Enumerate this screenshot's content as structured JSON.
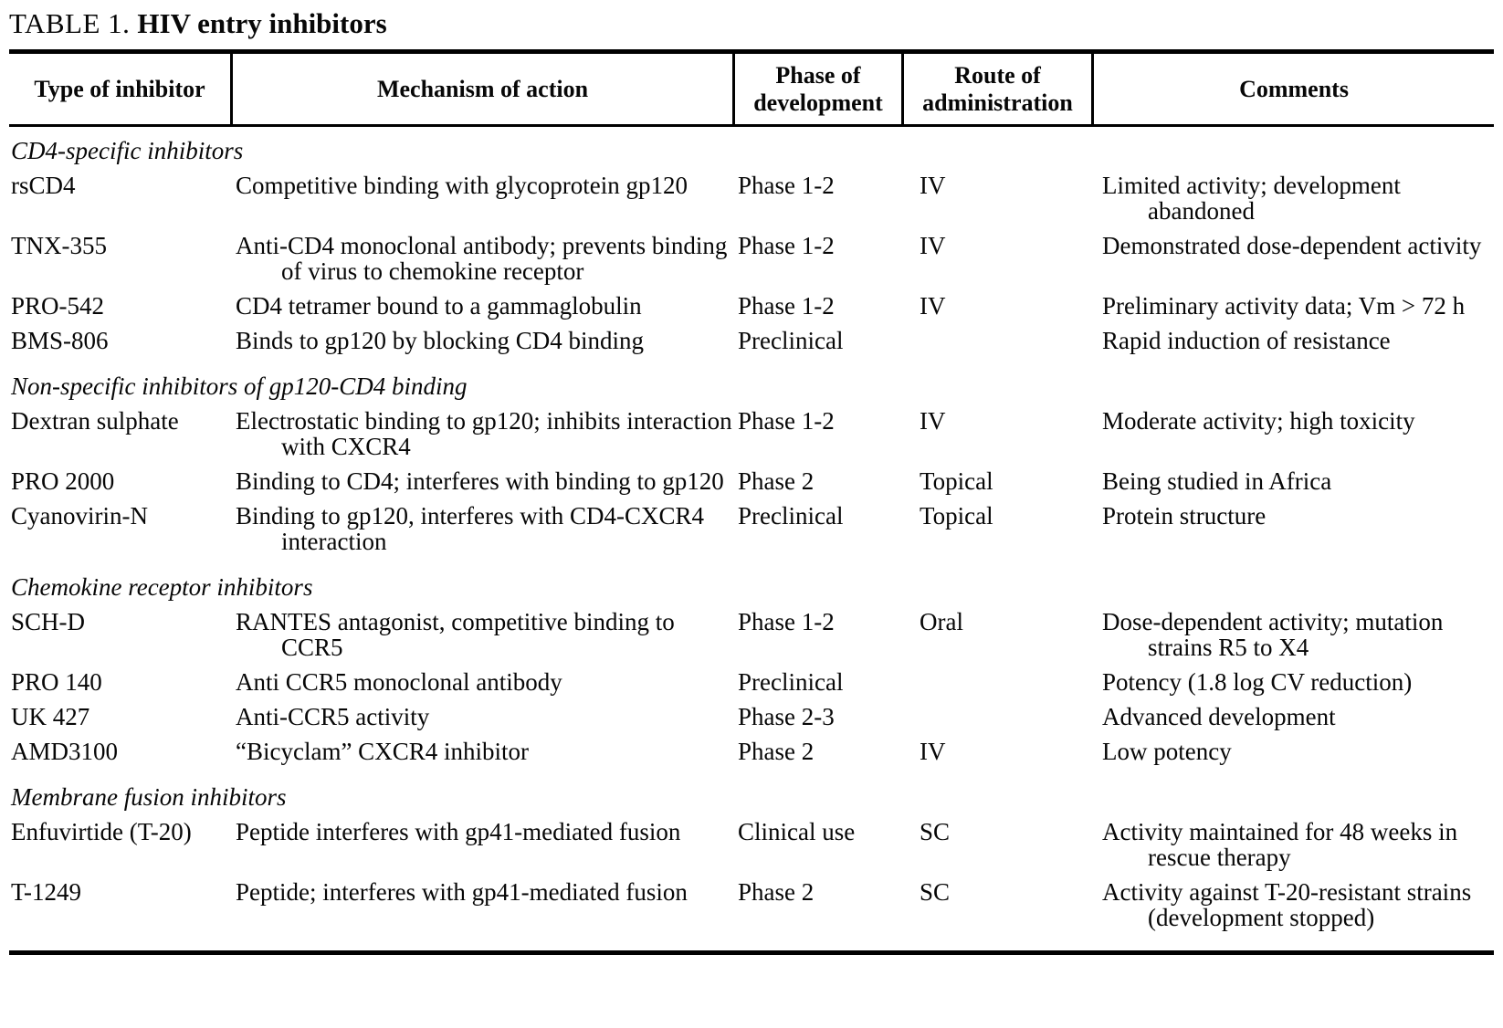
{
  "page": {
    "title_label": "TABLE 1.",
    "title_text": "HIV entry inhibitors"
  },
  "table": {
    "columns": [
      "Type of inhibitor",
      "Mechanism of action",
      "Phase of development",
      "Route of administration",
      "Comments"
    ],
    "sections": [
      {
        "heading": "CD4-specific inhibitors",
        "rows": [
          {
            "inhibitor": "rsCD4",
            "mechanism": "Competitive binding with glycoprotein gp120",
            "phase": "Phase 1-2",
            "route": "IV",
            "comments": "Limited activity; development abandoned"
          },
          {
            "inhibitor": "TNX-355",
            "mechanism": "Anti-CD4 monoclonal antibody; prevents binding of virus to chemokine receptor",
            "phase": "Phase 1-2",
            "route": "IV",
            "comments": "Demonstrated dose-dependent activity"
          },
          {
            "inhibitor": "PRO-542",
            "mechanism": "CD4 tetramer bound to a gammaglobulin",
            "phase": "Phase 1-2",
            "route": "IV",
            "comments": "Preliminary activity data; Vm > 72 h"
          },
          {
            "inhibitor": "BMS-806",
            "mechanism": "Binds to gp120 by blocking CD4 binding",
            "phase": "Preclinical",
            "route": "",
            "comments": "Rapid induction of resistance"
          }
        ]
      },
      {
        "heading": "Non-specific inhibitors of gp120-CD4 binding",
        "rows": [
          {
            "inhibitor": "Dextran sulphate",
            "mechanism": "Electrostatic binding to gp120; inhibits interaction with CXCR4",
            "phase": "Phase 1-2",
            "route": "IV",
            "comments": "Moderate activity; high toxicity"
          },
          {
            "inhibitor": "PRO 2000",
            "mechanism": "Binding to CD4; interferes with binding to gp120",
            "phase": "Phase 2",
            "route": "Topical",
            "comments": "Being studied in Africa"
          },
          {
            "inhibitor": "Cyanovirin-N",
            "mechanism": "Binding to gp120, interferes with CD4-CXCR4 interaction",
            "phase": "Preclinical",
            "route": "Topical",
            "comments": "Protein structure"
          }
        ]
      },
      {
        "heading": "Chemokine receptor inhibitors",
        "rows": [
          {
            "inhibitor": "SCH-D",
            "mechanism": "RANTES antagonist, competitive binding to CCR5",
            "phase": "Phase 1-2",
            "route": "Oral",
            "comments": "Dose-dependent activity; mutation strains R5 to X4"
          },
          {
            "inhibitor": "PRO 140",
            "mechanism": "Anti CCR5 monoclonal antibody",
            "phase": "Preclinical",
            "route": "",
            "comments": "Potency (1.8 log CV reduction)"
          },
          {
            "inhibitor": "UK 427",
            "mechanism": "Anti-CCR5 activity",
            "phase": "Phase 2-3",
            "route": "",
            "comments": "Advanced development"
          },
          {
            "inhibitor": "AMD3100",
            "mechanism": "“Bicyclam” CXCR4 inhibitor",
            "phase": "Phase 2",
            "route": "IV",
            "comments": "Low potency"
          }
        ]
      },
      {
        "heading": "Membrane fusion inhibitors",
        "rows": [
          {
            "inhibitor": "Enfuvirtide (T-20)",
            "mechanism": "Peptide interferes with gp41-mediated fusion",
            "phase": "Clinical use",
            "route": "SC",
            "comments": "Activity maintained for 48 weeks in rescue therapy"
          },
          {
            "inhibitor": "T-1249",
            "mechanism": "Peptide; interferes with gp41-mediated fusion",
            "phase": "Phase 2",
            "route": "SC",
            "comments": "Activity against T-20-resistant strains (development stopped)"
          }
        ]
      }
    ]
  }
}
